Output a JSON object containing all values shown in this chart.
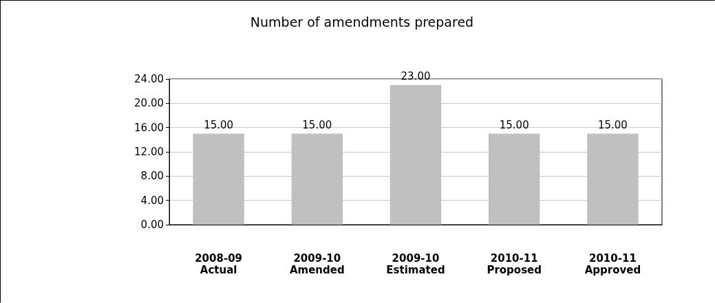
{
  "chart_data": {
    "type": "bar",
    "title": "Number of amendments prepared",
    "categories": [
      "2008-09\nActual",
      "2009-10\nAmended",
      "2009-10\nEstimated",
      "2010-11\nProposed",
      "2010-11\nApproved"
    ],
    "values": [
      15,
      15,
      23,
      15,
      15
    ],
    "color": "#c0c0c0",
    "value_labels": [
      "15.00",
      "15.00",
      "23.00",
      "15.00",
      "15.00"
    ],
    "ylim": [
      0,
      24
    ],
    "yticks": [
      {
        "value": 0,
        "label": "0.00"
      },
      {
        "value": 4,
        "label": "4.00"
      },
      {
        "value": 8,
        "label": "8.00"
      },
      {
        "value": 12,
        "label": "12.00"
      },
      {
        "value": 16,
        "label": "16.00"
      },
      {
        "value": 20,
        "label": "20.00"
      },
      {
        "value": 24,
        "label": "24.00"
      }
    ],
    "grid": "y"
  }
}
